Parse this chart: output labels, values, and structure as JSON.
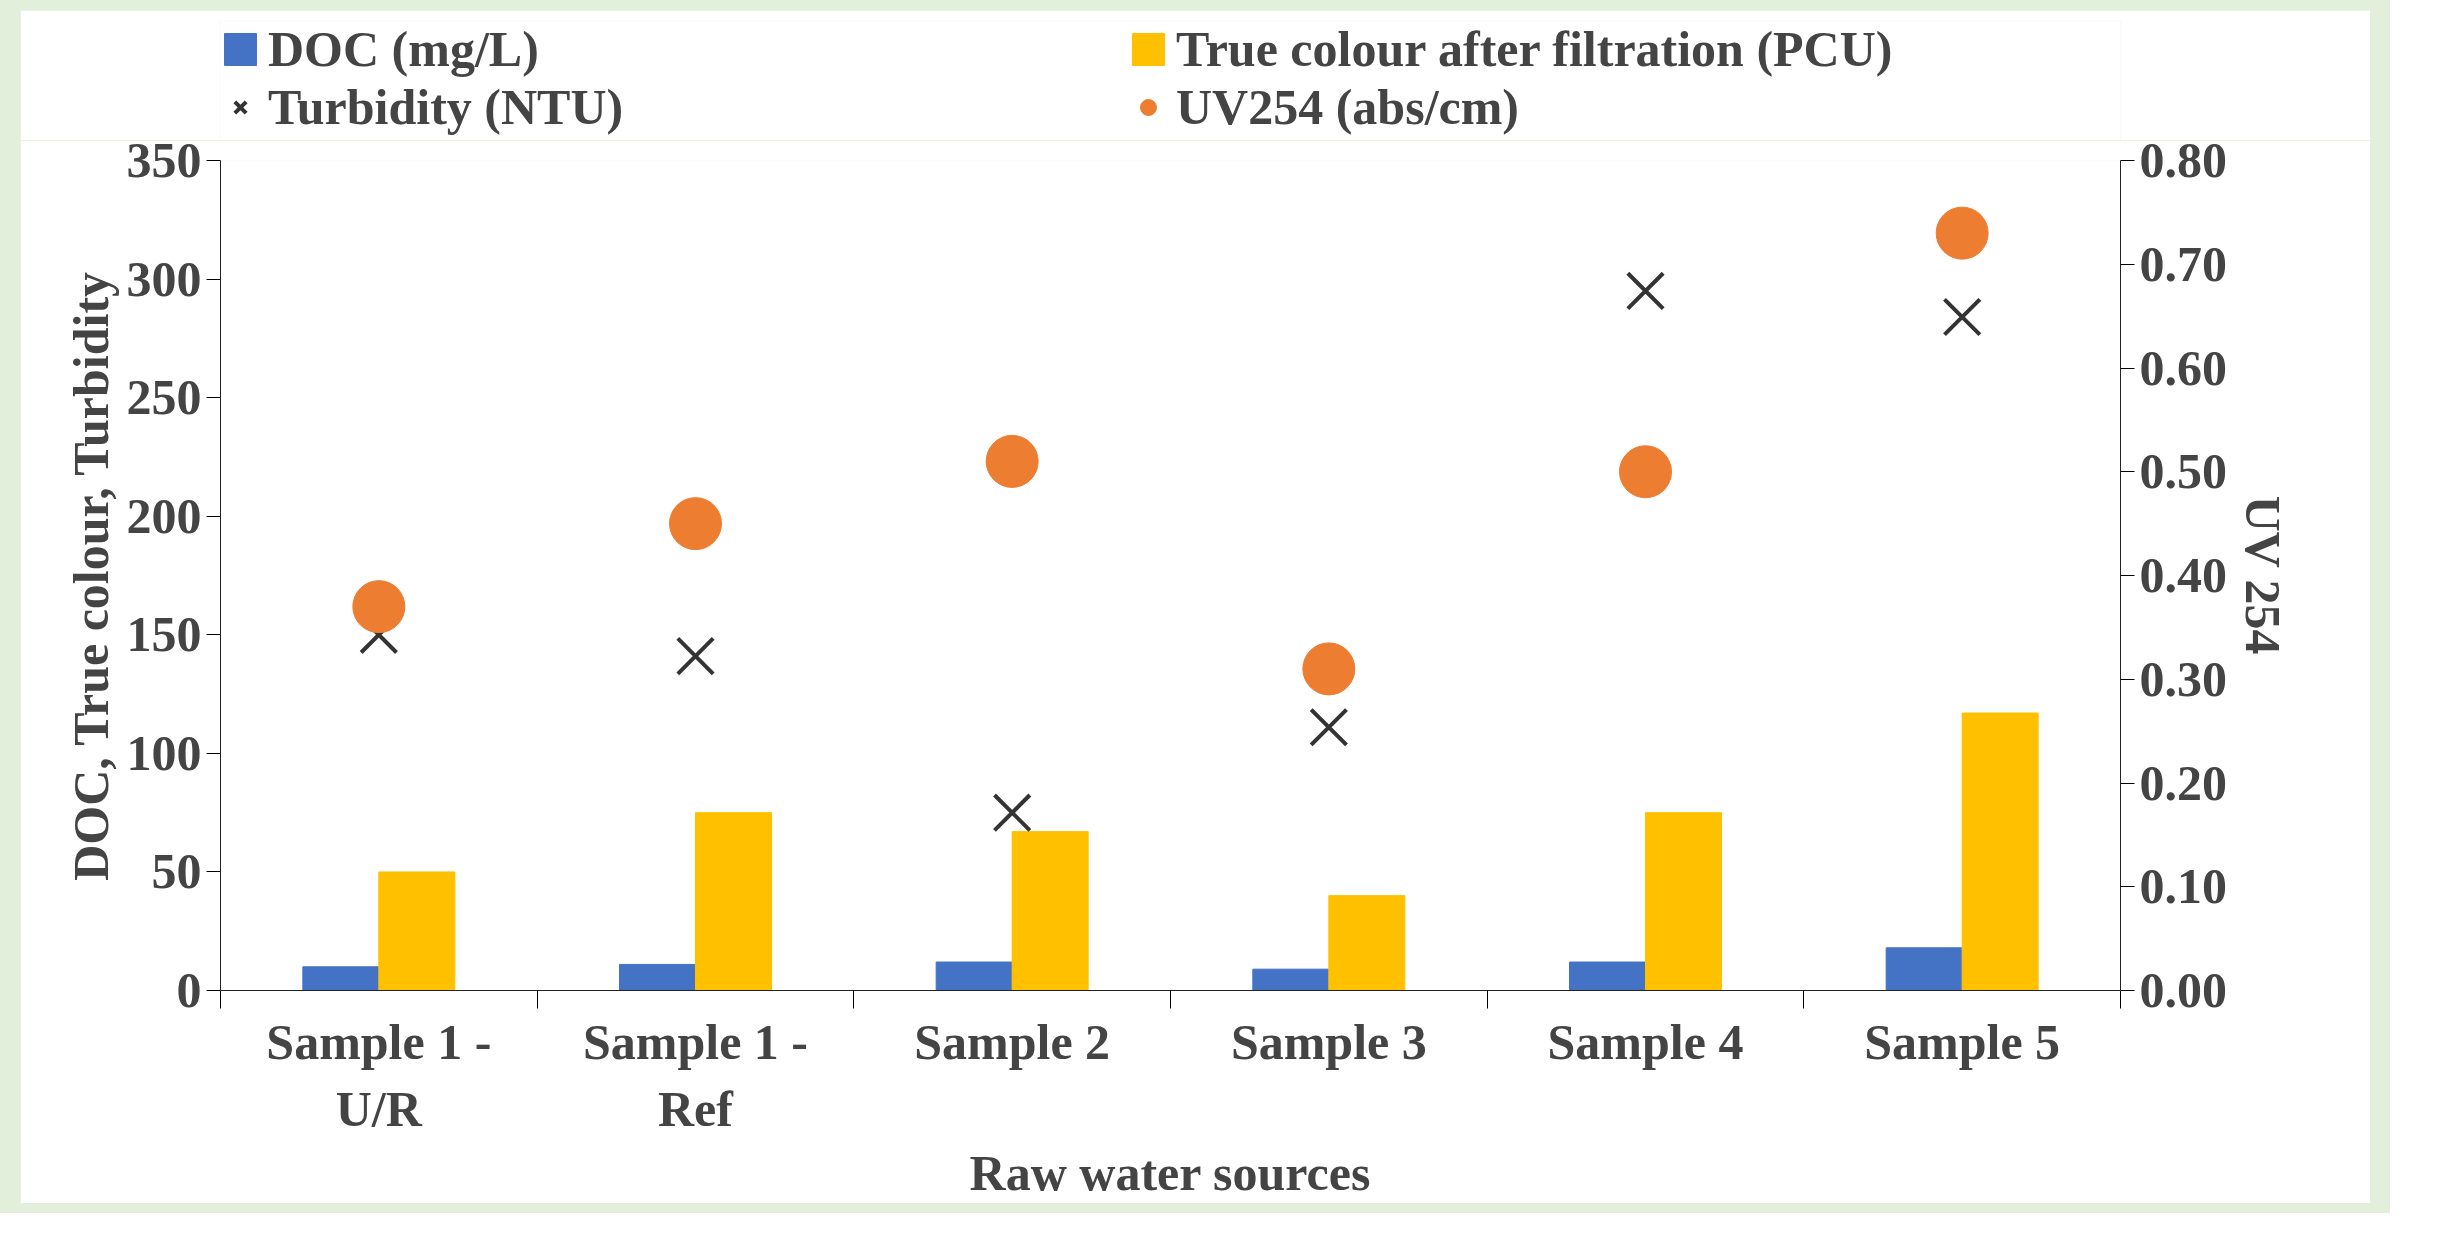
{
  "chart_data": {
    "type": "bar",
    "xlabel": "Raw water sources",
    "ylabel": "DOC, True colour, Turbidity",
    "y2label": "UV 254",
    "categories": [
      "Sample 1 - U/R",
      "Sample 1 - Ref",
      "Sample 2",
      "Sample 3",
      "Sample 4",
      "Sample 5"
    ],
    "series": [
      {
        "name": "DOC (mg/L)",
        "color": "#4472c4",
        "values": [
          10,
          11,
          12,
          9,
          12,
          18
        ]
      },
      {
        "name": "True colour after filtration (PCU)",
        "color": "#ffc000",
        "values": [
          50,
          75,
          67,
          40,
          75,
          117
        ]
      },
      {
        "name": "Turbidity (NTU)",
        "type": "scatter",
        "marker": "cross",
        "color": "#333333",
        "values": [
          150,
          141,
          75,
          111,
          295,
          284
        ]
      },
      {
        "name": "UV254 (abs/cm)",
        "type": "scatter",
        "marker": "circle",
        "color": "#ed7d31",
        "axis": "y2",
        "values": [
          0.37,
          0.45,
          0.51,
          0.31,
          0.5,
          0.73
        ]
      }
    ],
    "ylim": [
      0,
      350
    ],
    "yticks": [
      0,
      50,
      100,
      150,
      200,
      250,
      300,
      350
    ],
    "y2lim": [
      0,
      0.8
    ],
    "y2ticks": [
      {
        "value": 0,
        "label": "0.00"
      },
      {
        "value": 0.1,
        "label": "0.10"
      },
      {
        "value": 0.2,
        "label": "0.20"
      },
      {
        "value": 0.3,
        "label": "0.30"
      },
      {
        "value": 0.4,
        "label": "0.40"
      },
      {
        "value": 0.5,
        "label": "0.50"
      },
      {
        "value": 0.6,
        "label": "0.60"
      },
      {
        "value": 0.7,
        "label": "0.70"
      },
      {
        "value": 0.8,
        "label": "0.80"
      }
    ],
    "legend": "top",
    "grid": false
  }
}
